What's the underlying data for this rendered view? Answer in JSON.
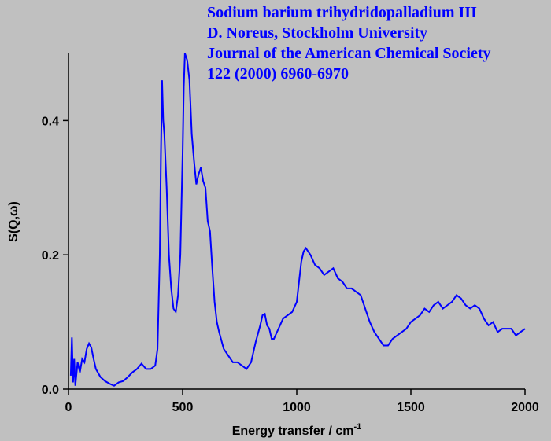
{
  "chart_data": {
    "type": "line",
    "annotations": [
      "Sodium barium trihydridopalladium III",
      "D. Noreus, Stockholm University",
      "Journal of the American Chemical Society",
      "122 (2000) 6960-6970"
    ],
    "x_label": "Energy transfer / cm",
    "x_label_superscript": "-1",
    "y_label": "S(Q,ω)",
    "xlim": [
      0,
      2000
    ],
    "xticks": [
      0,
      500,
      1000,
      1500,
      2000
    ],
    "ylim": [
      0,
      0.5
    ],
    "yticks": [
      {
        "value": 0,
        "label": "0.0"
      },
      0.2,
      0.4
    ],
    "x": [
      10,
      15,
      20,
      25,
      30,
      40,
      50,
      60,
      70,
      80,
      90,
      100,
      110,
      120,
      140,
      160,
      180,
      200,
      220,
      240,
      260,
      280,
      300,
      320,
      340,
      360,
      380,
      390,
      400,
      405,
      410,
      415,
      420,
      430,
      440,
      450,
      460,
      470,
      480,
      490,
      500,
      505,
      510,
      520,
      530,
      540,
      550,
      560,
      570,
      580,
      590,
      600,
      610,
      620,
      630,
      640,
      650,
      660,
      680,
      700,
      720,
      740,
      760,
      780,
      800,
      820,
      840,
      850,
      860,
      870,
      880,
      890,
      900,
      920,
      940,
      960,
      980,
      1000,
      1010,
      1020,
      1030,
      1040,
      1060,
      1080,
      1100,
      1120,
      1140,
      1160,
      1180,
      1200,
      1220,
      1240,
      1260,
      1280,
      1300,
      1320,
      1340,
      1360,
      1380,
      1400,
      1420,
      1440,
      1460,
      1480,
      1500,
      1520,
      1540,
      1560,
      1580,
      1600,
      1620,
      1640,
      1660,
      1680,
      1700,
      1720,
      1740,
      1760,
      1780,
      1800,
      1820,
      1840,
      1860,
      1880,
      1900,
      1920,
      1940,
      1960,
      1980,
      2000
    ],
    "series": [
      {
        "color": "#0000ff",
        "values": [
          0.02,
          0.077,
          0.01,
          0.045,
          0.005,
          0.04,
          0.025,
          0.045,
          0.04,
          0.06,
          0.068,
          0.062,
          0.045,
          0.03,
          0.018,
          0.012,
          0.008,
          0.005,
          0.01,
          0.012,
          0.018,
          0.025,
          0.03,
          0.038,
          0.03,
          0.03,
          0.035,
          0.06,
          0.2,
          0.35,
          0.46,
          0.4,
          0.38,
          0.3,
          0.2,
          0.15,
          0.12,
          0.115,
          0.14,
          0.2,
          0.35,
          0.45,
          0.5,
          0.49,
          0.46,
          0.38,
          0.34,
          0.305,
          0.32,
          0.33,
          0.31,
          0.3,
          0.25,
          0.235,
          0.18,
          0.13,
          0.1,
          0.085,
          0.06,
          0.05,
          0.04,
          0.04,
          0.035,
          0.03,
          0.04,
          0.07,
          0.095,
          0.11,
          0.112,
          0.095,
          0.09,
          0.075,
          0.075,
          0.09,
          0.105,
          0.11,
          0.115,
          0.13,
          0.16,
          0.19,
          0.205,
          0.21,
          0.2,
          0.185,
          0.18,
          0.17,
          0.175,
          0.18,
          0.165,
          0.16,
          0.15,
          0.15,
          0.145,
          0.14,
          0.12,
          0.1,
          0.085,
          0.075,
          0.065,
          0.065,
          0.075,
          0.08,
          0.085,
          0.09,
          0.1,
          0.105,
          0.11,
          0.12,
          0.115,
          0.125,
          0.13,
          0.12,
          0.125,
          0.13,
          0.14,
          0.135,
          0.125,
          0.12,
          0.125,
          0.12,
          0.105,
          0.095,
          0.1,
          0.085,
          0.09,
          0.09,
          0.09,
          0.08,
          0.085,
          0.09
        ]
      }
    ]
  }
}
